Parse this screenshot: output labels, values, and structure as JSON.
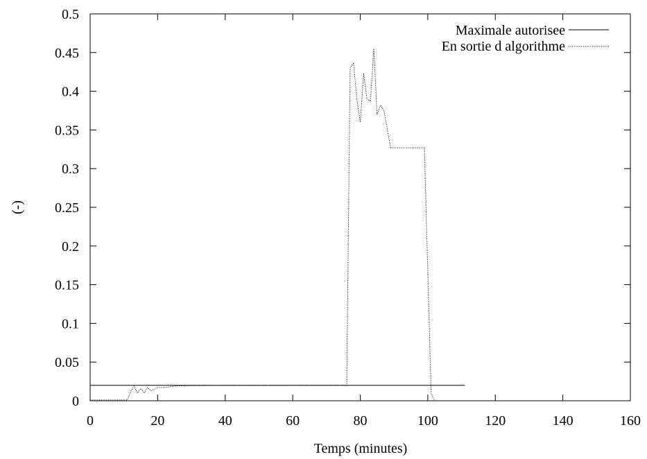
{
  "chart_data": {
    "type": "line",
    "title": "",
    "xlabel": "Temps (minutes)",
    "ylabel": "(-)",
    "xlim": [
      0,
      160
    ],
    "ylim": [
      0,
      0.5
    ],
    "x_ticks": [
      {
        "value": 0,
        "label": "0"
      },
      {
        "value": 20,
        "label": "20"
      },
      {
        "value": 40,
        "label": "40"
      },
      {
        "value": 60,
        "label": "60"
      },
      {
        "value": 80,
        "label": "80"
      },
      {
        "value": 100,
        "label": "100"
      },
      {
        "value": 120,
        "label": "120"
      },
      {
        "value": 140,
        "label": "140"
      },
      {
        "value": 160,
        "label": "160"
      }
    ],
    "y_ticks": [
      {
        "value": 0,
        "label": "0"
      },
      {
        "value": 0.05,
        "label": "0.05"
      },
      {
        "value": 0.1,
        "label": "0.1"
      },
      {
        "value": 0.15,
        "label": "0.15"
      },
      {
        "value": 0.2,
        "label": "0.2"
      },
      {
        "value": 0.25,
        "label": "0.25"
      },
      {
        "value": 0.3,
        "label": "0.3"
      },
      {
        "value": 0.35,
        "label": "0.35"
      },
      {
        "value": 0.4,
        "label": "0.4"
      },
      {
        "value": 0.45,
        "label": "0.45"
      },
      {
        "value": 0.5,
        "label": "0.5"
      }
    ],
    "grid": false,
    "legend_position": "top-right",
    "series": [
      {
        "name": "Maximale autorisee",
        "style": "solid",
        "color": "#000000",
        "points": [
          [
            0,
            0.02
          ],
          [
            111,
            0.02
          ]
        ]
      },
      {
        "name": "En sortie d algorithme",
        "style": "dotted",
        "color": "#000000",
        "points": [
          [
            0,
            0.001
          ],
          [
            11,
            0.001
          ],
          [
            12,
            0.012
          ],
          [
            13,
            0.019
          ],
          [
            14,
            0.01
          ],
          [
            15,
            0.016
          ],
          [
            16,
            0.01
          ],
          [
            17,
            0.017
          ],
          [
            18,
            0.013
          ],
          [
            19,
            0.015
          ],
          [
            20,
            0.017
          ],
          [
            22,
            0.017
          ],
          [
            25,
            0.019
          ],
          [
            30,
            0.0195
          ],
          [
            40,
            0.0198
          ],
          [
            60,
            0.0199
          ],
          [
            76,
            0.02
          ],
          [
            77,
            0.43
          ],
          [
            78,
            0.437
          ],
          [
            79,
            0.39
          ],
          [
            80,
            0.36
          ],
          [
            81,
            0.423
          ],
          [
            82,
            0.39
          ],
          [
            83,
            0.387
          ],
          [
            84,
            0.455
          ],
          [
            85,
            0.37
          ],
          [
            86,
            0.382
          ],
          [
            87,
            0.375
          ],
          [
            89,
            0.327
          ],
          [
            99,
            0.327
          ],
          [
            101,
            0.01
          ],
          [
            102,
            0.0
          ]
        ]
      }
    ]
  }
}
